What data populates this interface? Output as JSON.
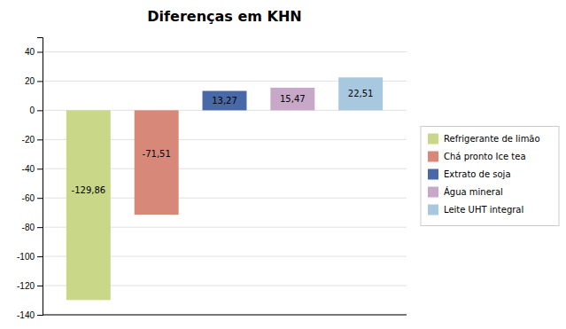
{
  "chart_data": {
    "type": "bar",
    "title": "Diferenças em KHN",
    "categories": [
      "Refrigerante de limão",
      "Chá pronto Ice tea",
      "Extrato de soja",
      "Água mineral",
      "Leite UHT integral"
    ],
    "values": [
      -129.86,
      -71.51,
      13.27,
      15.47,
      22.51
    ],
    "value_labels": [
      "-129,86",
      "-71,51",
      "13,27",
      "15,47",
      "22,51"
    ],
    "colors": [
      "#c8d888",
      "#d88878",
      "#4868a8",
      "#c8a8c8",
      "#a8c8e0"
    ],
    "ylim": [
      -140,
      50
    ],
    "yticks": [
      -140,
      -120,
      -100,
      -80,
      -60,
      -40,
      -20,
      0,
      20,
      40
    ],
    "grid": true,
    "legend": "right",
    "data_labels": true,
    "tick_labels": "y"
  }
}
